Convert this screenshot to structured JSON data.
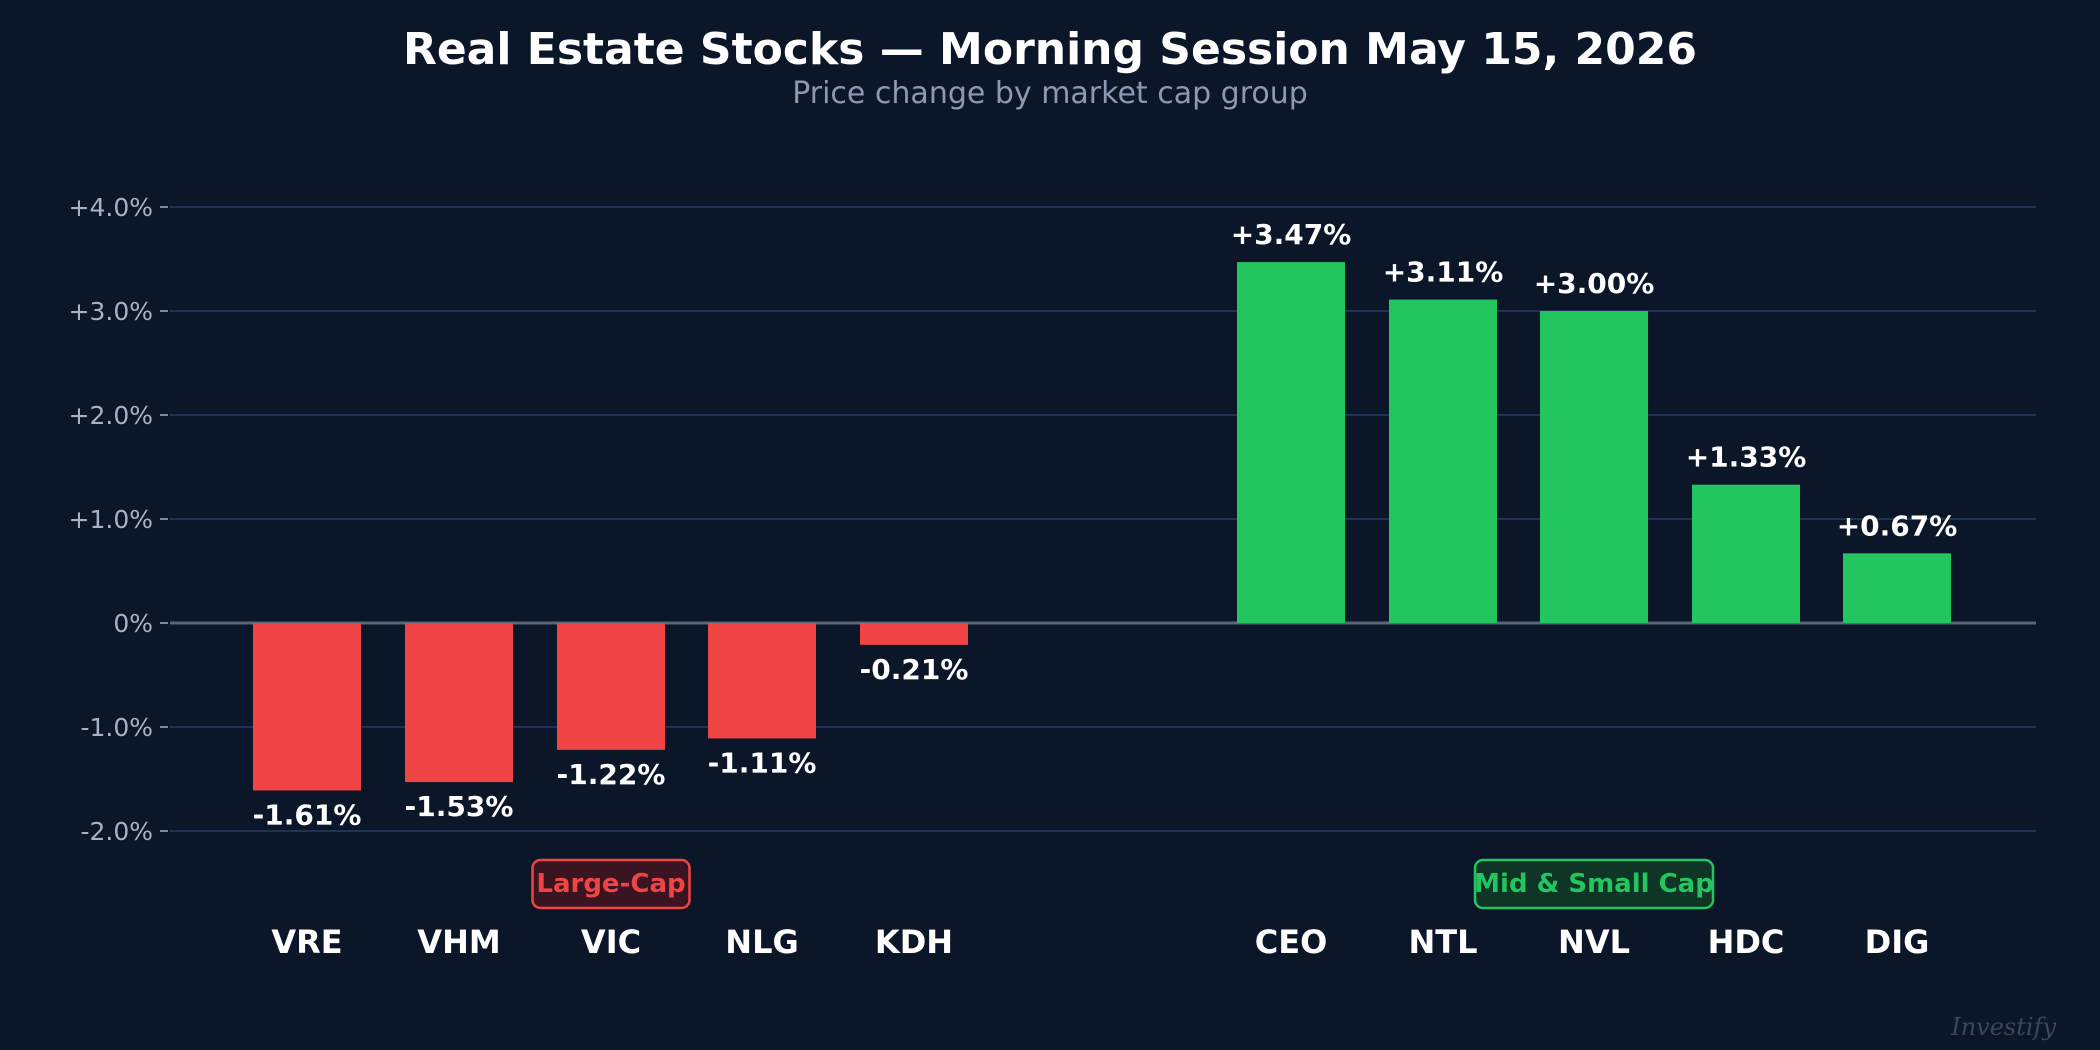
{
  "chart_data": {
    "type": "bar",
    "title": "Real Estate Stocks — Morning Session May 15, 2026",
    "subtitle": "Price change by market cap group",
    "xlabel": "",
    "ylabel": "",
    "ylim": [
      -2.0,
      4.0
    ],
    "yticks": [
      {
        "value": 4.0,
        "label": "+4.0%"
      },
      {
        "value": 3.0,
        "label": "+3.0%"
      },
      {
        "value": 2.0,
        "label": "+2.0%"
      },
      {
        "value": 1.0,
        "label": "+1.0%"
      },
      {
        "value": 0.0,
        "label": "0%"
      },
      {
        "value": -1.0,
        "label": "-1.0%"
      },
      {
        "value": -2.0,
        "label": "-2.0%"
      }
    ],
    "grid": true,
    "categories": [
      "VRE",
      "VHM",
      "VIC",
      "NLG",
      "KDH",
      "CEO",
      "NTL",
      "NVL",
      "HDC",
      "DIG"
    ],
    "values": [
      -1.61,
      -1.53,
      -1.22,
      -1.11,
      -0.21,
      3.47,
      3.11,
      3.0,
      1.33,
      0.67
    ],
    "value_labels": [
      "-1.61%",
      "-1.53%",
      "-1.22%",
      "-1.11%",
      "-0.21%",
      "+3.47%",
      "+3.11%",
      "+3.00%",
      "+1.33%",
      "+0.67%"
    ],
    "groups": [
      {
        "name": "Large-Cap",
        "categories": [
          "VRE",
          "VHM",
          "VIC",
          "NLG",
          "KDH"
        ],
        "color": "#ef4444"
      },
      {
        "name": "Mid & Small Cap",
        "categories": [
          "CEO",
          "NTL",
          "NVL",
          "HDC",
          "DIG"
        ],
        "color": "#22c55e"
      }
    ],
    "colors": {
      "negative": "#ef4444",
      "positive": "#22c55e",
      "background": "#0b1628"
    }
  },
  "watermark": "Investify"
}
